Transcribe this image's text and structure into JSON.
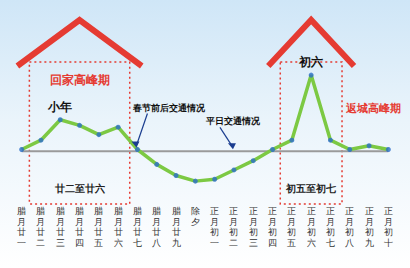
{
  "chart_data": {
    "type": "line",
    "categories": [
      "腊月廿一",
      "腊月廿二",
      "腊月廿三",
      "腊月廿四",
      "腊月廿五",
      "腊月廿六",
      "腊月廿七",
      "腊月廿八",
      "腊月廿九",
      "除夕",
      "正月初一",
      "正月初二",
      "正月初三",
      "正月初四",
      "正月初五",
      "正月初六",
      "正月初七",
      "正月初八",
      "正月初九",
      "正月初十"
    ],
    "series": [
      {
        "color": "#7cc943",
        "marker": "circle",
        "values": [
          25,
          30,
          41,
          38,
          33,
          37,
          25,
          17,
          11,
          8,
          9,
          14,
          19,
          25,
          30,
          65,
          30,
          25,
          27,
          25
        ]
      },
      {
        "color": "#9a9a9a",
        "marker": "none",
        "values": [
          24,
          24,
          24,
          24,
          24,
          24,
          24,
          24,
          24,
          24,
          24,
          24,
          24,
          24,
          24,
          24,
          24,
          24,
          24,
          24
        ]
      }
    ],
    "periods": [
      {
        "title": "回家高峰期",
        "label": "廿二至廿六",
        "from": "腊月廿二",
        "to": "腊月廿六",
        "color": "#e53b32"
      },
      {
        "title": "返城高峰期",
        "label": "初五至初七",
        "from": "正月初五",
        "to": "正月初七",
        "color": "#e53b32"
      }
    ],
    "annotations": [
      {
        "text": "小年",
        "x": "腊月廿三",
        "y": 41
      },
      {
        "text": "初六",
        "x": "正月初六",
        "y": 65
      },
      {
        "text": "春节前后交通情况",
        "x": "腊月廿七",
        "y": 25
      },
      {
        "text": "平日交通情况",
        "x": "正月初二",
        "y": 24
      }
    ],
    "ylim": [
      0,
      100
    ],
    "grid": false,
    "tick_labels": "x"
  }
}
